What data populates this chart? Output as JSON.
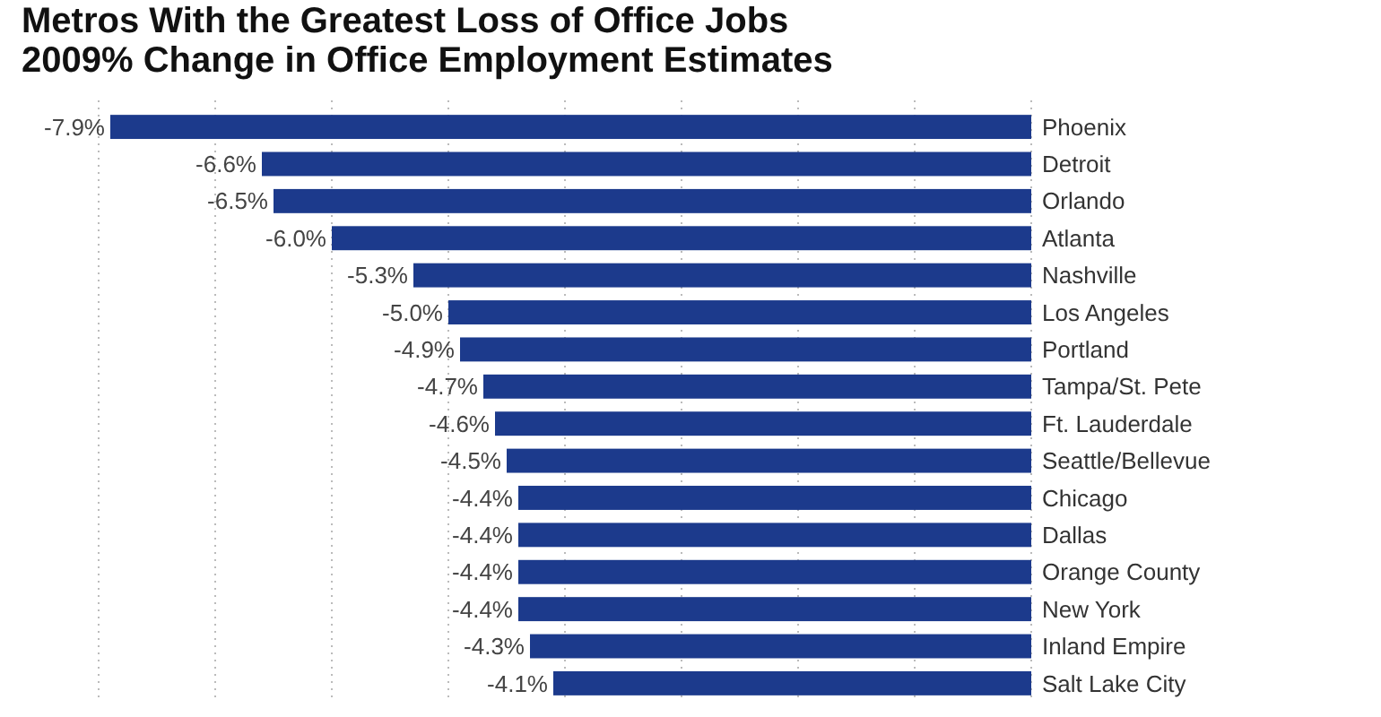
{
  "chart_data": {
    "type": "bar",
    "orientation": "horizontal",
    "title": "Metros With the Greatest Loss of Office Jobs",
    "subtitle": "2009% Change in Office Employment Estimates",
    "categories": [
      "Phoenix",
      "Detroit",
      "Orlando",
      "Atlanta",
      "Nashville",
      "Los Angeles",
      "Portland",
      "Tampa/St. Pete",
      "Ft. Lauderdale",
      "Seattle/Bellevue",
      "Chicago",
      "Dallas",
      "Orange County",
      "New York",
      "Inland Empire",
      "Salt Lake City"
    ],
    "values": [
      -7.9,
      -6.6,
      -6.5,
      -6.0,
      -5.3,
      -5.0,
      -4.9,
      -4.7,
      -4.6,
      -4.5,
      -4.4,
      -4.4,
      -4.4,
      -4.4,
      -4.3,
      -4.1
    ],
    "value_labels": [
      "-7.9%",
      "-6.6%",
      "-6.5%",
      "-6.0%",
      "-5.3%",
      "-5.0%",
      "-4.9%",
      "-4.7%",
      "-4.6%",
      "-4.5%",
      "-4.4%",
      "-4.4%",
      "-4.4%",
      "-4.4%",
      "-4.3%",
      "-4.1%"
    ],
    "color": "#1c3a8c",
    "xlim": [
      -8,
      0
    ],
    "xticks": [
      {
        "value": -8,
        "label": null
      },
      {
        "value": -7,
        "label": null
      },
      {
        "value": -6,
        "label": null
      },
      {
        "value": -5,
        "label": null
      },
      {
        "value": -4,
        "label": null
      },
      {
        "value": -3,
        "label": null
      },
      {
        "value": -2,
        "label": null
      },
      {
        "value": -1,
        "label": null
      },
      {
        "value": 0,
        "label": null
      }
    ],
    "grid": "x",
    "tick_labels": "y"
  }
}
